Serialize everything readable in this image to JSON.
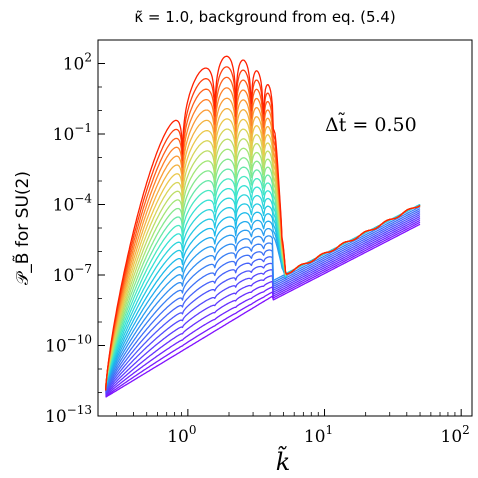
{
  "chart_data": {
    "type": "line",
    "title": "κ̃ = 1.0, background from eq. (5.4)",
    "xlabel": "k̃",
    "ylabel": "𝒫_B̃ for SU(2)",
    "xscale": "log",
    "yscale": "log",
    "xlim": [
      0.22,
      120
    ],
    "ylim": [
      1e-13,
      1000
    ],
    "x_ticks": [
      {
        "value": 1,
        "label": "10^0"
      },
      {
        "value": 10,
        "label": "10^1"
      },
      {
        "value": 100,
        "label": "10^2"
      }
    ],
    "y_ticks": [
      {
        "value": 100.0,
        "label": "10^2"
      },
      {
        "value": 0.1,
        "label": "10^-1"
      },
      {
        "value": 0.0001,
        "label": "10^-4"
      },
      {
        "value": 1e-07,
        "label": "10^-7"
      },
      {
        "value": 1e-10,
        "label": "10^-10"
      },
      {
        "value": 1e-13,
        "label": "10^-13"
      }
    ],
    "annotation": "Δt̃ = 0.50",
    "colormap": "rainbow (purple → blue → cyan → green → yellow → orange → red)",
    "series_count": 30,
    "description_of_series": "Time snapshots of the power spectrum; early (purple) low, growing to late (red) with peak ~2e2 near k̃≈2; all converge to a rising power law for k̃>5 reaching ~1e-4 at k̃=50",
    "k_range": [
      0.25,
      50
    ],
    "late_peak": {
      "k": 2.0,
      "value": 200
    },
    "uv_tail": {
      "k_start": 5.0,
      "value_start": 1e-07,
      "k_end": 50,
      "value_end": 0.0001
    }
  }
}
